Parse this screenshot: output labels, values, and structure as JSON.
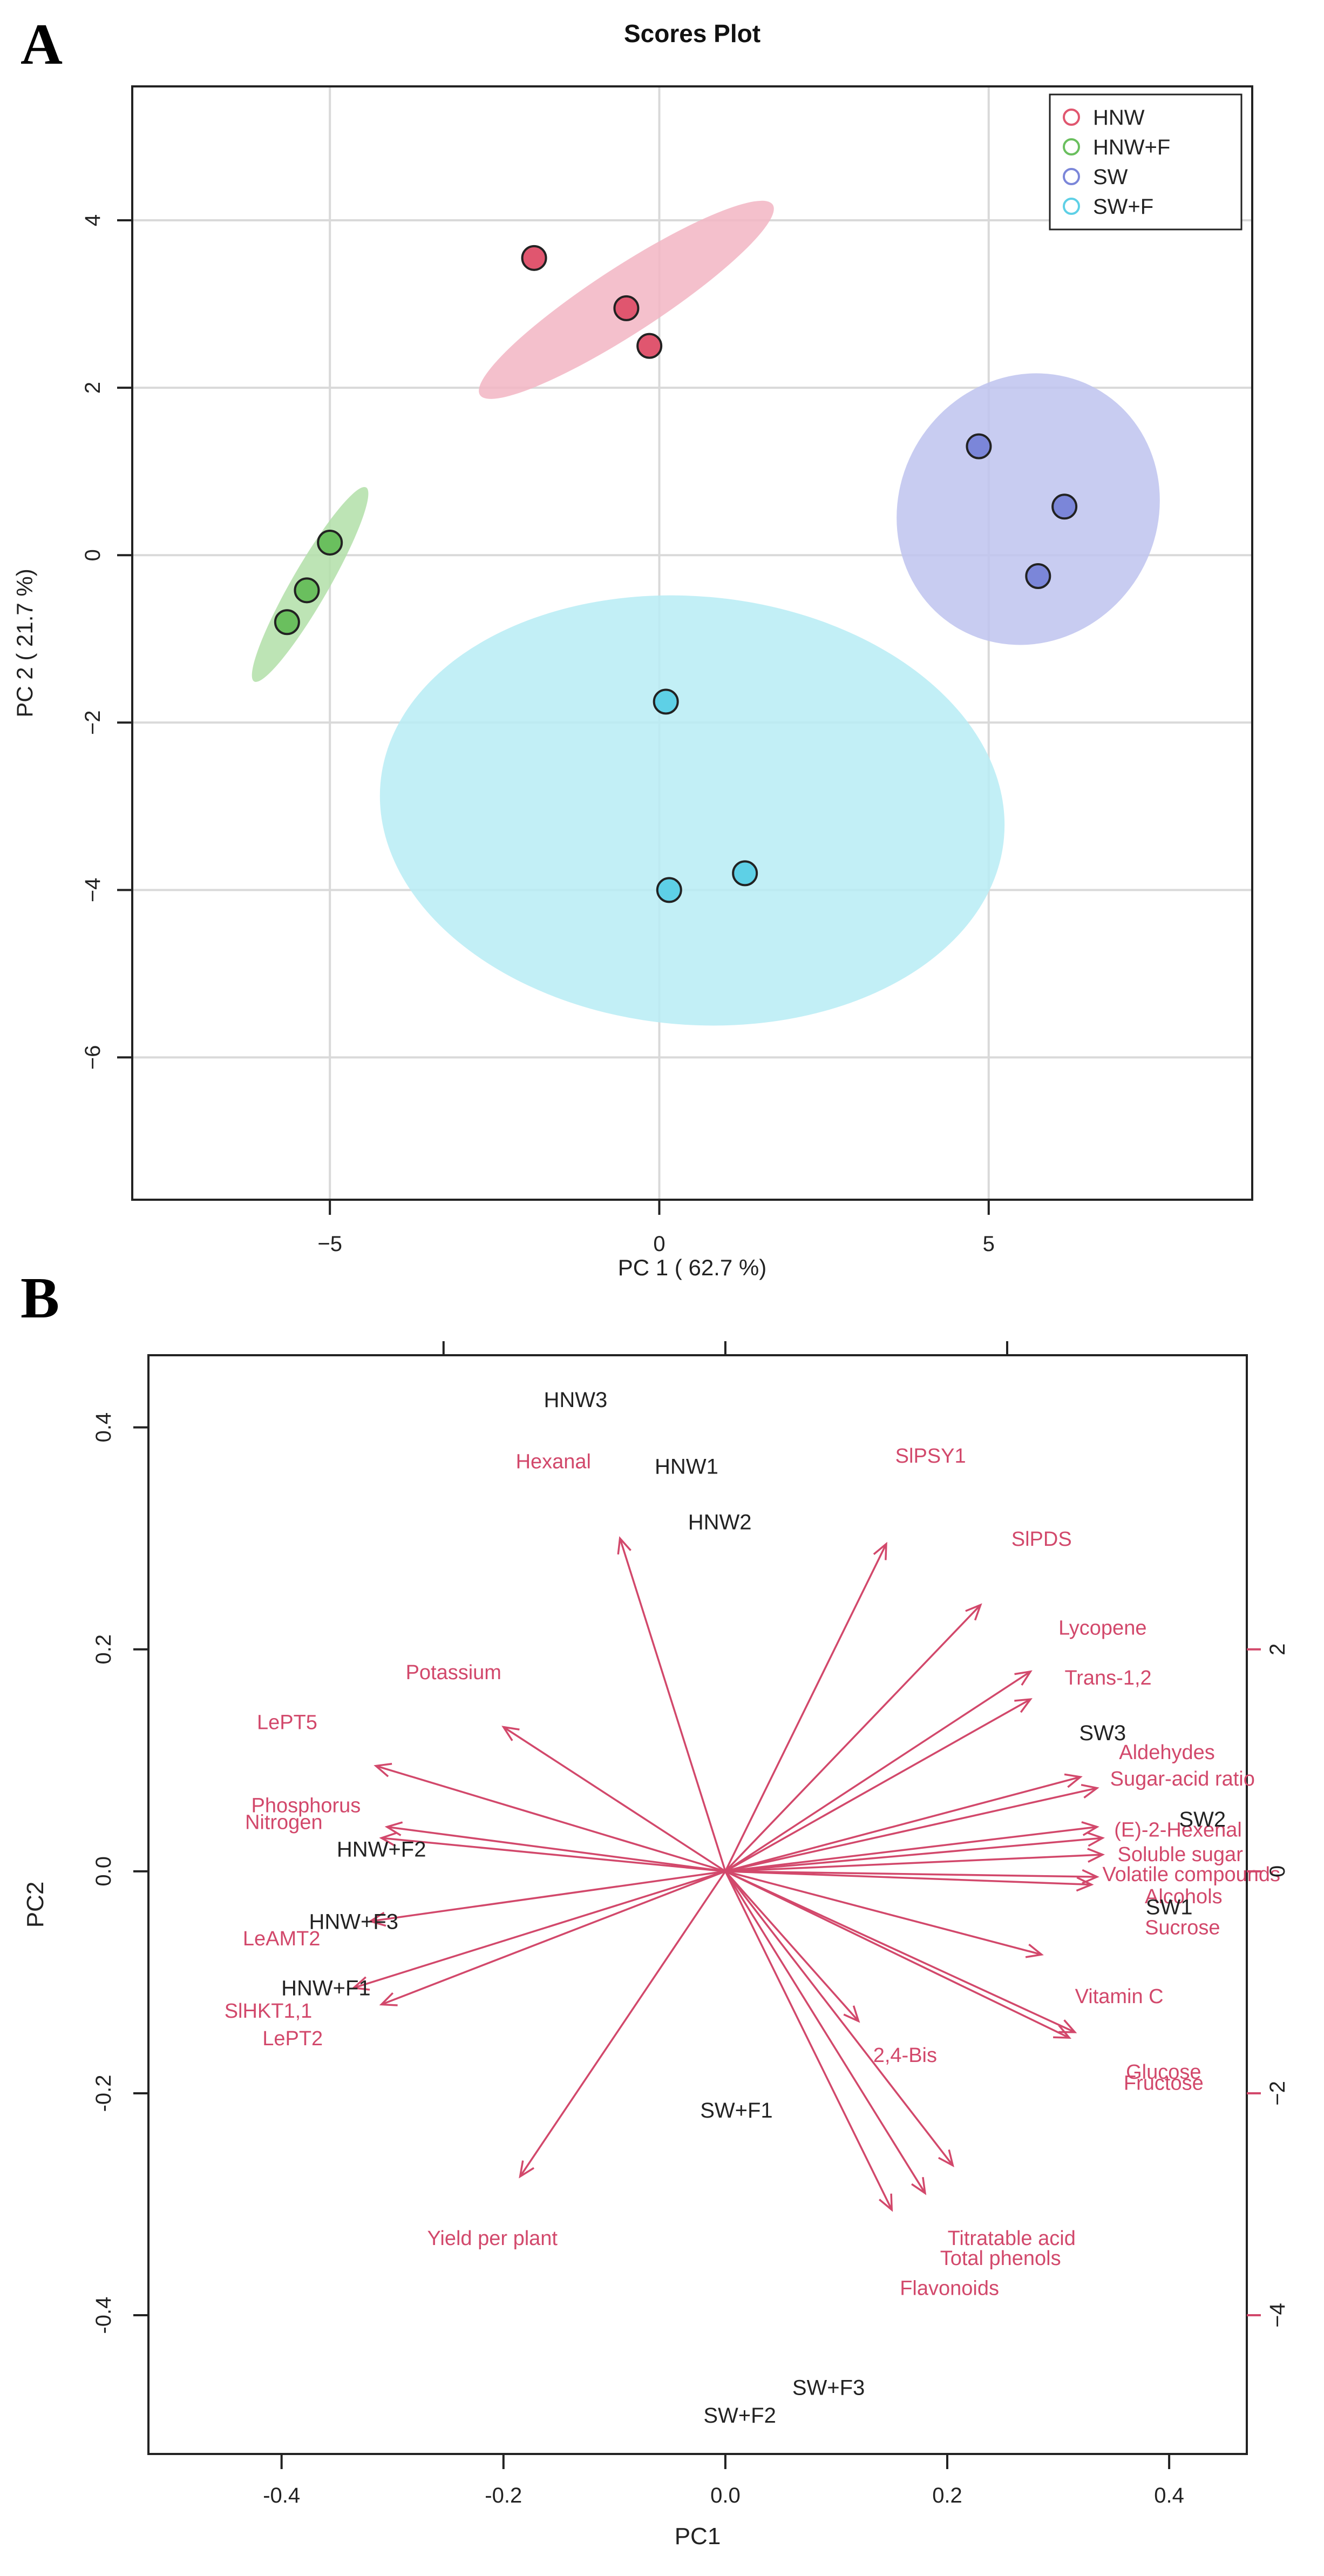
{
  "panel_labels": [
    "A",
    "B"
  ],
  "chart_data": [
    {
      "type": "scatter",
      "panel": "A",
      "title": "Scores Plot",
      "xlabel": "PC 1 ( 62.7 %)",
      "ylabel": "PC 2 ( 21.7 %)",
      "xlim": [
        -8.0,
        9.0
      ],
      "ylim": [
        -7.7,
        5.6
      ],
      "xticks": [
        -5,
        0,
        5
      ],
      "yticks": [
        4,
        2,
        0,
        -2,
        -4,
        -6
      ],
      "grid": true,
      "legend_position": "top-right",
      "series": [
        {
          "name": "HNW",
          "color": "#e0566f",
          "ellipse_color": "#f2b5c3",
          "points": [
            [
              -1.9,
              3.55
            ],
            [
              -0.5,
              2.95
            ],
            [
              -0.15,
              2.5
            ]
          ],
          "ellipse": {
            "cx": -0.5,
            "cy": 3.05,
            "rx": 2.65,
            "ry": 0.18,
            "angle_deg": -33
          }
        },
        {
          "name": "HNW+F",
          "color": "#6abf5e",
          "ellipse_color": "#b2dfa8",
          "points": [
            [
              -5.0,
              0.15
            ],
            [
              -5.35,
              -0.42
            ],
            [
              -5.65,
              -0.8
            ]
          ],
          "ellipse": {
            "cx": -5.3,
            "cy": -0.35,
            "rx": 1.7,
            "ry": 0.1,
            "angle_deg": -60
          }
        },
        {
          "name": "SW",
          "color": "#7b86d9",
          "ellipse_color": "#bec3ee",
          "points": [
            [
              4.85,
              1.3
            ],
            [
              6.15,
              0.58
            ],
            [
              5.75,
              -0.25
            ]
          ],
          "ellipse": {
            "cx": 5.6,
            "cy": 0.55,
            "rx": 2.1,
            "ry": 0.7,
            "angle_deg": -58
          }
        },
        {
          "name": "SW+F",
          "color": "#5ed0e6",
          "ellipse_color": "#b7ecf4",
          "points": [
            [
              0.1,
              -1.75
            ],
            [
              1.3,
              -3.8
            ],
            [
              0.15,
              -4.0
            ]
          ],
          "ellipse": {
            "cx": 0.5,
            "cy": -3.05,
            "rx": 3.25,
            "ry": 1.7,
            "angle_deg": -85
          }
        }
      ]
    },
    {
      "type": "biplot",
      "panel": "B",
      "xlabel": "PC1",
      "ylabel": "PC2",
      "xlim": [
        -0.52,
        0.47
      ],
      "ylim": [
        -0.525,
        0.465
      ],
      "xticks": [
        -0.4,
        -0.2,
        0.0,
        0.2,
        0.4
      ],
      "xtick_labels": [
        "-0.4",
        "-0.2",
        "0.0",
        "0.2",
        "0.4"
      ],
      "yticks": [
        0.4,
        0.2,
        0.0,
        -0.2,
        -0.4
      ],
      "ytick_labels": [
        "0.4",
        "0.2",
        "0.0",
        "-0.2",
        "-0.4"
      ],
      "secondary_yticks": [
        2,
        0,
        -2,
        -4
      ],
      "secondary_ytick_labels": [
        "2",
        "0",
        "−2",
        "−4"
      ],
      "secondary_scale_per_unit": 0.1,
      "top_ticks": [
        -0.254,
        0.0,
        0.254
      ],
      "arrow_color": "#d2486b",
      "sample_color": "#222222",
      "samples": [
        {
          "label": "HNW3",
          "x": -0.135,
          "y": 0.425
        },
        {
          "label": "HNW1",
          "x": -0.035,
          "y": 0.365
        },
        {
          "label": "HNW2",
          "x": -0.005,
          "y": 0.315
        },
        {
          "label": "SW3",
          "x": 0.34,
          "y": 0.125
        },
        {
          "label": "SW2",
          "x": 0.43,
          "y": 0.047
        },
        {
          "label": "SW1",
          "x": 0.4,
          "y": -0.032
        },
        {
          "label": "HNW+F2",
          "x": -0.31,
          "y": 0.02
        },
        {
          "label": "HNW+F3",
          "x": -0.335,
          "y": -0.045
        },
        {
          "label": "HNW+F1",
          "x": -0.36,
          "y": -0.105
        },
        {
          "label": "SW+F1",
          "x": 0.01,
          "y": -0.215
        },
        {
          "label": "SW+F3",
          "x": 0.093,
          "y": -0.465
        },
        {
          "label": "SW+F2",
          "x": 0.013,
          "y": -0.49
        }
      ],
      "loadings": [
        {
          "label": "Hexanal",
          "x": -0.095,
          "y": 0.3,
          "lx": -0.155,
          "ly": 0.37
        },
        {
          "label": "SlPSY1",
          "x": 0.145,
          "y": 0.295,
          "lx": 0.185,
          "ly": 0.375
        },
        {
          "label": "SlPDS",
          "x": 0.23,
          "y": 0.24,
          "lx": 0.285,
          "ly": 0.3
        },
        {
          "label": "Lycopene",
          "x": 0.275,
          "y": 0.18,
          "lx": 0.34,
          "ly": 0.22
        },
        {
          "label": "Trans-1,2",
          "x": 0.275,
          "y": 0.155,
          "lx": 0.345,
          "ly": 0.175
        },
        {
          "label": "Aldehydes",
          "x": 0.32,
          "y": 0.085,
          "lx": 0.398,
          "ly": 0.108
        },
        {
          "label": "Sugar-acid ratio",
          "x": 0.335,
          "y": 0.075,
          "lx": 0.412,
          "ly": 0.084
        },
        {
          "label": "(E)-2-Hexenal",
          "x": 0.335,
          "y": 0.04,
          "lx": 0.408,
          "ly": 0.038
        },
        {
          "label": "Soluble sugar",
          "x": 0.34,
          "y": 0.03,
          "lx": 0.41,
          "ly": 0.016
        },
        {
          "label": "Volatile compounds",
          "x": 0.34,
          "y": 0.015,
          "lx": 0.42,
          "ly": -0.002
        },
        {
          "label": "Alcohols",
          "x": 0.335,
          "y": -0.005,
          "lx": 0.413,
          "ly": -0.022
        },
        {
          "label": "Sucrose",
          "x": 0.33,
          "y": -0.012,
          "lx": 0.412,
          "ly": -0.05
        },
        {
          "label": "Vitamin C",
          "x": 0.285,
          "y": -0.075,
          "lx": 0.355,
          "ly": -0.112
        },
        {
          "label": "Glucose",
          "x": 0.315,
          "y": -0.145,
          "lx": 0.395,
          "ly": -0.18
        },
        {
          "label": "Fructose",
          "x": 0.31,
          "y": -0.15,
          "lx": 0.395,
          "ly": -0.19
        },
        {
          "label": "2,4-Bis",
          "x": 0.12,
          "y": -0.135,
          "lx": 0.162,
          "ly": -0.165
        },
        {
          "label": "Titratable acid",
          "x": 0.205,
          "y": -0.265,
          "lx": 0.258,
          "ly": -0.33
        },
        {
          "label": "Total phenols",
          "x": 0.18,
          "y": -0.29,
          "lx": 0.248,
          "ly": -0.348
        },
        {
          "label": "Flavonoids",
          "x": 0.15,
          "y": -0.305,
          "lx": 0.202,
          "ly": -0.375
        },
        {
          "label": "Yield per plant",
          "x": -0.185,
          "y": -0.275,
          "lx": -0.21,
          "ly": -0.33
        },
        {
          "label": "Potassium",
          "x": -0.2,
          "y": 0.13,
          "lx": -0.245,
          "ly": 0.18
        },
        {
          "label": "LePT5",
          "x": -0.315,
          "y": 0.095,
          "lx": -0.395,
          "ly": 0.135
        },
        {
          "label": "Phosphorus",
          "x": -0.305,
          "y": 0.04,
          "lx": -0.378,
          "ly": 0.06
        },
        {
          "label": "Nitrogen",
          "x": -0.31,
          "y": 0.03,
          "lx": -0.398,
          "ly": 0.045
        },
        {
          "label": "LeAMT2",
          "x": -0.32,
          "y": -0.045,
          "lx": -0.4,
          "ly": -0.06
        },
        {
          "label": "SlHKT1,1",
          "x": -0.335,
          "y": -0.105,
          "lx": -0.412,
          "ly": -0.125
        },
        {
          "label": "LePT2",
          "x": -0.31,
          "y": -0.12,
          "lx": -0.39,
          "ly": -0.15
        }
      ]
    }
  ]
}
